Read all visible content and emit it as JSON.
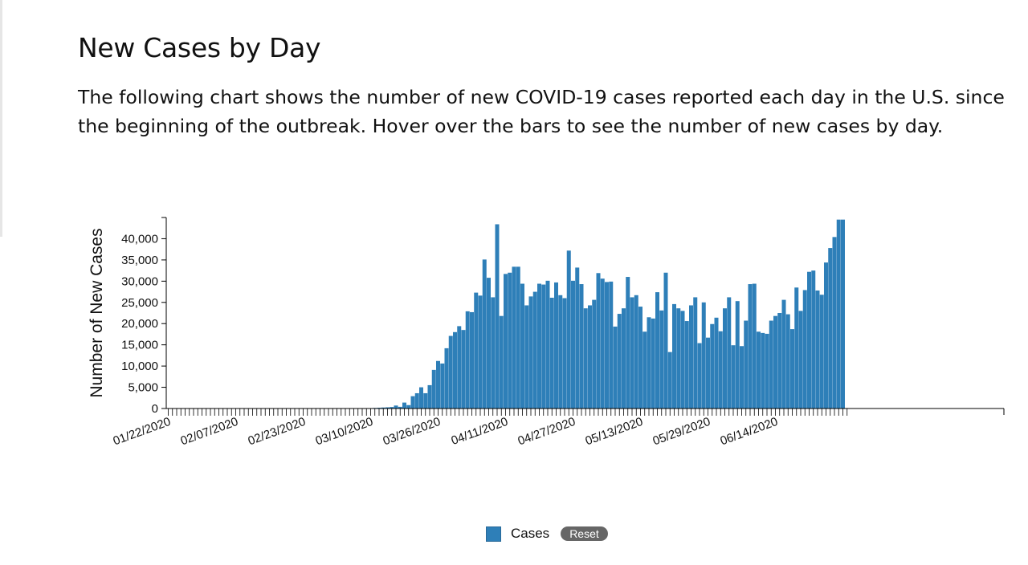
{
  "page": {
    "title": "New Cases by Day",
    "description": "The following chart shows the number of new COVID-19 cases reported each day in the U.S. since the beginning of the outbreak. Hover over the bars to see the number of new cases by day."
  },
  "legend": {
    "series_label": "Cases",
    "reset_label": "Reset",
    "swatch_color": "#2e7fb8"
  },
  "chart_data": {
    "type": "bar",
    "ylabel": "Number of New Cases",
    "ylim": [
      0,
      45000
    ],
    "yticks": [
      0,
      5000,
      10000,
      15000,
      20000,
      25000,
      30000,
      35000,
      40000
    ],
    "ytick_labels": [
      "0",
      "5,000",
      "10,000",
      "15,000",
      "20,000",
      "25,000",
      "30,000",
      "35,000",
      "40,000"
    ],
    "x_start": "01/22/2020",
    "x_end": "06/27/2020",
    "xtick_labels": [
      "01/22/2020",
      "02/07/2020",
      "02/23/2020",
      "03/10/2020",
      "03/26/2020",
      "04/11/2020",
      "04/27/2020",
      "05/13/2020",
      "05/29/2020",
      "06/14/2020"
    ],
    "bar_color": "#2e7fb8",
    "series": [
      {
        "name": "Cases",
        "values": [
          1,
          0,
          1,
          0,
          2,
          0,
          0,
          1,
          0,
          1,
          0,
          2,
          0,
          0,
          0,
          1,
          0,
          0,
          1,
          0,
          0,
          0,
          1,
          0,
          0,
          0,
          0,
          0,
          1,
          0,
          0,
          0,
          0,
          0,
          0,
          0,
          0,
          2,
          3,
          0,
          10,
          5,
          5,
          10,
          20,
          25,
          45,
          70,
          90,
          130,
          180,
          230,
          280,
          350,
          700,
          400,
          1400,
          800,
          2900,
          3600,
          5000,
          3600,
          5500,
          9100,
          11200,
          10600,
          14200,
          17100,
          18000,
          19400,
          18500,
          22900,
          22700,
          27300,
          26600,
          35100,
          30800,
          26200,
          43400,
          21800,
          31700,
          32000,
          33400,
          33400,
          29400,
          24300,
          26400,
          27500,
          29400,
          29200,
          30100,
          26100,
          29700,
          26700,
          26000,
          37200,
          30100,
          33200,
          29300,
          23600,
          24300,
          25600,
          31900,
          30600,
          29800,
          29900,
          19300,
          22300,
          23600,
          31000,
          26200,
          26700,
          24000,
          18100,
          21500,
          21200,
          27400,
          23100,
          32000,
          13300,
          24600,
          23600,
          23000,
          20600,
          24300,
          26200,
          15400,
          25000,
          16700,
          19900,
          21400,
          18200,
          23600,
          26200,
          14900,
          25300,
          14700,
          20700,
          29300,
          29400,
          18100,
          17800,
          17600,
          20700,
          21800,
          22500,
          25600,
          22200,
          18700,
          28500,
          23000,
          27900,
          32200,
          32500,
          27800,
          26800,
          34400,
          37800,
          40400,
          44500,
          44500
        ]
      }
    ]
  }
}
